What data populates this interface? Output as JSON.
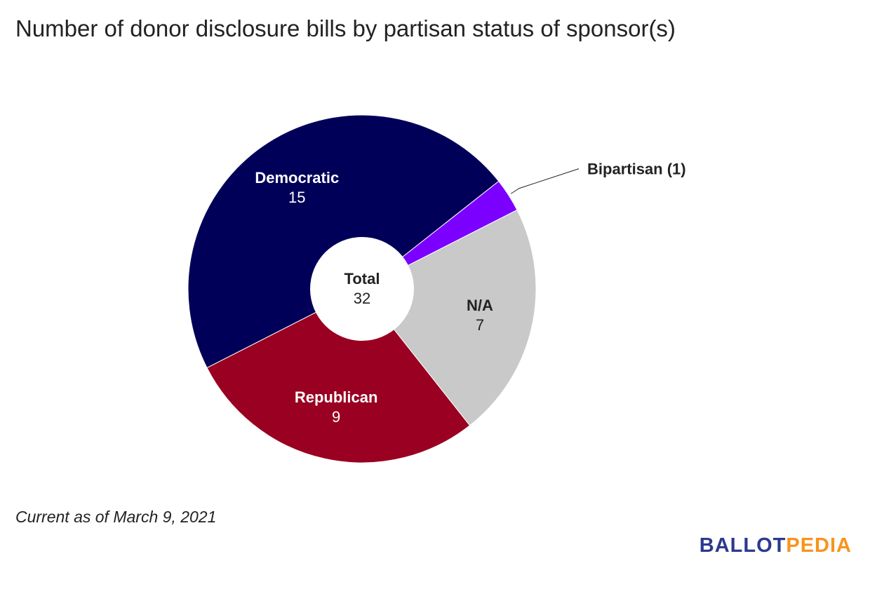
{
  "chart_data": {
    "type": "pie",
    "variant": "donut",
    "title": "Number of donor disclosure bills by partisan status of sponsor(s)",
    "slices": [
      {
        "label": "Democratic",
        "value": 15,
        "color": "#000058",
        "label_color": "#ffffff",
        "label_position": "inside",
        "display_value": "15"
      },
      {
        "label": "Bipartisan",
        "value": 1,
        "color": "#7b00ff",
        "label_color": "#222222",
        "label_position": "outside",
        "display_label": "Bipartisan (1)"
      },
      {
        "label": "N/A",
        "value": 7,
        "color": "#c9c9c9",
        "label_color": "#222222",
        "label_position": "inside",
        "display_value": "7"
      },
      {
        "label": "Republican",
        "value": 9,
        "color": "#990021",
        "label_color": "#ffffff",
        "label_position": "inside",
        "display_value": "9"
      }
    ],
    "center_label": "Total",
    "center_value": "32"
  },
  "footnote": "Current as of March 9, 2021",
  "logo": {
    "part1": "BALLOT",
    "part2": "PEDIA"
  }
}
